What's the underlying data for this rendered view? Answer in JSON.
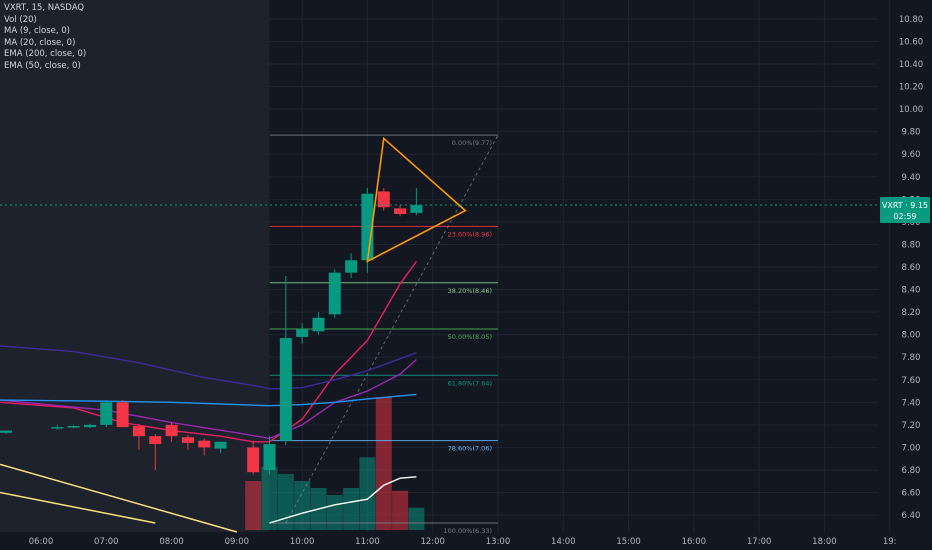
{
  "legend": {
    "symbol_line": "VXRT, 15, NASDAQ",
    "indicators": [
      "Vol (20)",
      "MA (9, close, 0)",
      "MA (20, close, 0)",
      "EMA (200, close, 0)",
      "EMA (50, close, 0)"
    ]
  },
  "price_tag": {
    "label": "VXRT · 9.15",
    "countdown": "02:59",
    "color": "#089981"
  },
  "colors": {
    "background": "#131722",
    "session_shade": "#1e222d",
    "up": "#089981",
    "down": "#f23645",
    "fib_line": "#787b86",
    "triangle": "#ff9800",
    "grid": "#1f2430"
  },
  "chart_data": {
    "type": "candlestick",
    "y_axis": {
      "range": [
        6.25,
        10.95
      ],
      "tick_labels": [
        "6.40",
        "6.60",
        "6.80",
        "7.00",
        "7.20",
        "7.40",
        "7.60",
        "7.80",
        "8.00",
        "8.20",
        "8.40",
        "8.60",
        "8.80",
        "9.00",
        "9.20",
        "9.40",
        "9.60",
        "9.80",
        "10.00",
        "10.20",
        "10.40",
        "10.60",
        "10.80"
      ]
    },
    "x_axis": {
      "tick_labels": [
        "06:00",
        "07:00",
        "08:00",
        "09:00",
        "10:00",
        "11:00",
        "12:00",
        "13:00",
        "14:00",
        "15:00",
        "16:00",
        "17:00",
        "18:00",
        "19:"
      ]
    },
    "current_price": 9.15,
    "candles": [
      {
        "t": "05:45",
        "o": 7.13,
        "h": 7.15,
        "l": 7.12,
        "c": 7.15
      },
      {
        "t": "06:15",
        "o": 7.18,
        "h": 7.2,
        "l": 7.16,
        "c": 7.18
      },
      {
        "t": "06:30",
        "o": 7.19,
        "h": 7.2,
        "l": 7.17,
        "c": 7.19
      },
      {
        "t": "06:45",
        "o": 7.18,
        "h": 7.21,
        "l": 7.17,
        "c": 7.2
      },
      {
        "t": "07:00",
        "o": 7.2,
        "h": 7.42,
        "l": 7.18,
        "c": 7.4
      },
      {
        "t": "07:15",
        "o": 7.4,
        "h": 7.42,
        "l": 7.18,
        "c": 7.18
      },
      {
        "t": "07:30",
        "o": 7.19,
        "h": 7.21,
        "l": 6.98,
        "c": 7.1
      },
      {
        "t": "07:45",
        "o": 7.1,
        "h": 7.12,
        "l": 6.8,
        "c": 7.03
      },
      {
        "t": "08:00",
        "o": 7.2,
        "h": 7.22,
        "l": 7.05,
        "c": 7.1
      },
      {
        "t": "08:15",
        "o": 7.09,
        "h": 7.11,
        "l": 6.98,
        "c": 7.04
      },
      {
        "t": "08:30",
        "o": 7.06,
        "h": 7.08,
        "l": 6.93,
        "c": 7.0
      },
      {
        "t": "08:45",
        "o": 6.99,
        "h": 7.05,
        "l": 6.95,
        "c": 7.05
      },
      {
        "t": "09:15",
        "o": 7.0,
        "h": 7.06,
        "l": 6.76,
        "c": 6.78
      },
      {
        "t": "09:30",
        "o": 6.8,
        "h": 7.1,
        "l": 6.76,
        "c": 7.03
      },
      {
        "t": "09:45",
        "o": 7.06,
        "h": 8.52,
        "l": 7.02,
        "c": 7.97
      },
      {
        "t": "10:00",
        "o": 7.98,
        "h": 8.1,
        "l": 7.92,
        "c": 8.05
      },
      {
        "t": "10:15",
        "o": 8.03,
        "h": 8.2,
        "l": 8.0,
        "c": 8.15
      },
      {
        "t": "10:30",
        "o": 8.18,
        "h": 8.58,
        "l": 8.15,
        "c": 8.55
      },
      {
        "t": "10:45",
        "o": 8.55,
        "h": 8.72,
        "l": 8.5,
        "c": 8.66
      },
      {
        "t": "11:00",
        "o": 8.66,
        "h": 9.3,
        "l": 8.55,
        "c": 9.25
      },
      {
        "t": "11:15",
        "o": 9.27,
        "h": 9.3,
        "l": 9.1,
        "c": 9.13
      },
      {
        "t": "11:30",
        "o": 9.12,
        "h": 9.15,
        "l": 9.05,
        "c": 9.07
      },
      {
        "t": "11:45",
        "o": 9.08,
        "h": 9.3,
        "l": 9.06,
        "c": 9.15
      }
    ],
    "volume": [
      {
        "t": "09:15",
        "v": 0.35,
        "up": false
      },
      {
        "t": "09:30",
        "v": 0.45,
        "up": true
      },
      {
        "t": "09:45",
        "v": 0.4,
        "up": true
      },
      {
        "t": "10:00",
        "v": 0.35,
        "up": true
      },
      {
        "t": "10:15",
        "v": 0.3,
        "up": true
      },
      {
        "t": "10:30",
        "v": 0.25,
        "up": true
      },
      {
        "t": "10:45",
        "v": 0.3,
        "up": true
      },
      {
        "t": "11:00",
        "v": 0.52,
        "up": true
      },
      {
        "t": "11:15",
        "v": 0.95,
        "up": false
      },
      {
        "t": "11:30",
        "v": 0.28,
        "up": false
      },
      {
        "t": "11:45",
        "v": 0.16,
        "up": true
      }
    ],
    "fibonacci": [
      {
        "label": "0.00%(9.77)",
        "price": 9.77,
        "color": "#787b86"
      },
      {
        "label": "23.60%(8.96)",
        "price": 8.96,
        "color": "#f23645"
      },
      {
        "label": "38.20%(8.46)",
        "price": 8.46,
        "color": "#81c784"
      },
      {
        "label": "50.00%(8.05)",
        "price": 8.05,
        "color": "#4caf50"
      },
      {
        "label": "61.80%(7.64)",
        "price": 7.64,
        "color": "#089981"
      },
      {
        "label": "78.60%(7.06)",
        "price": 7.06,
        "color": "#64b5f6"
      },
      {
        "label": "100.00%(6.33)",
        "price": 6.33,
        "color": "#787b86"
      }
    ],
    "moving_averages": [
      {
        "name": "MA (9, close, 0)",
        "color": "#e91e63",
        "points": [
          [
            "05:45",
            7.4
          ],
          [
            "06:30",
            7.35
          ],
          [
            "07:15",
            7.22
          ],
          [
            "08:00",
            7.15
          ],
          [
            "08:45",
            7.1
          ],
          [
            "09:15",
            7.05
          ],
          [
            "09:30",
            7.05
          ],
          [
            "10:00",
            7.25
          ],
          [
            "10:30",
            7.65
          ],
          [
            "11:00",
            7.95
          ],
          [
            "11:15",
            8.2
          ],
          [
            "11:30",
            8.45
          ],
          [
            "11:45",
            8.65
          ]
        ]
      },
      {
        "name": "MA (20, close, 0)",
        "color": "#9c27b0",
        "points": [
          [
            "05:45",
            7.42
          ],
          [
            "07:00",
            7.33
          ],
          [
            "08:00",
            7.22
          ],
          [
            "09:00",
            7.13
          ],
          [
            "09:30",
            7.08
          ],
          [
            "10:00",
            7.2
          ],
          [
            "10:30",
            7.4
          ],
          [
            "11:00",
            7.5
          ],
          [
            "11:30",
            7.65
          ],
          [
            "11:45",
            7.78
          ]
        ]
      },
      {
        "name": "EMA (200, close, 0)",
        "color": "#2196f3",
        "points": [
          [
            "05:45",
            7.42
          ],
          [
            "07:00",
            7.41
          ],
          [
            "08:00",
            7.4
          ],
          [
            "09:00",
            7.38
          ],
          [
            "09:30",
            7.37
          ],
          [
            "10:00",
            7.38
          ],
          [
            "10:30",
            7.4
          ],
          [
            "11:00",
            7.43
          ],
          [
            "11:45",
            7.47
          ]
        ]
      },
      {
        "name": "EMA (50, close, 0)",
        "color": "#3f2a9a",
        "points": [
          [
            "05:45",
            7.9
          ],
          [
            "06:30",
            7.85
          ],
          [
            "07:30",
            7.75
          ],
          [
            "08:30",
            7.62
          ],
          [
            "09:15",
            7.55
          ],
          [
            "09:30",
            7.52
          ],
          [
            "10:00",
            7.53
          ],
          [
            "10:30",
            7.6
          ],
          [
            "11:00",
            7.68
          ],
          [
            "11:45",
            7.84
          ]
        ]
      },
      {
        "name": "Vol MA",
        "color": "#ffffff",
        "pane": "volume",
        "points": [
          [
            "09:30",
            0.05
          ],
          [
            "10:00",
            0.12
          ],
          [
            "10:30",
            0.18
          ],
          [
            "11:00",
            0.22
          ],
          [
            "11:15",
            0.32
          ],
          [
            "11:30",
            0.37
          ],
          [
            "11:45",
            0.38
          ]
        ]
      }
    ],
    "drawings": {
      "triangle": [
        [
          "11:15",
          9.74
        ],
        [
          "11:00",
          8.65
        ],
        [
          "12:30",
          9.1
        ]
      ],
      "trend_line_dashed": [
        [
          "09:45",
          6.33
        ],
        [
          "13:00",
          9.77
        ]
      ],
      "yellow_lines": [
        [
          [
            "05:45",
            6.85
          ],
          [
            "09:00",
            6.25
          ]
        ],
        [
          [
            "05:45",
            6.6
          ],
          [
            "07:45",
            6.33
          ]
        ]
      ]
    }
  }
}
